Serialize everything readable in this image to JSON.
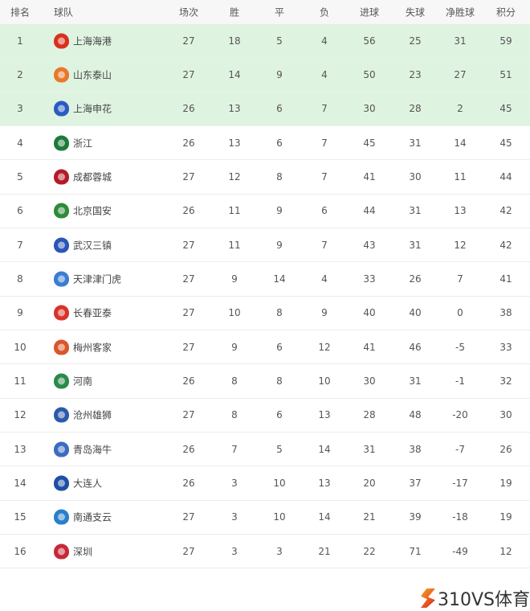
{
  "headers": {
    "rank": "排名",
    "team": "球队",
    "played": "场次",
    "won": "胜",
    "drawn": "平",
    "lost": "负",
    "gf": "进球",
    "ga": "失球",
    "gd": "净胜球",
    "pts": "积分"
  },
  "highlight_color": "#dff3e1",
  "rows": [
    {
      "rank": "1",
      "team": "上海海港",
      "played": "27",
      "won": "18",
      "drawn": "5",
      "lost": "4",
      "gf": "56",
      "ga": "25",
      "gd": "31",
      "pts": "59",
      "logo_color": "#d9301e"
    },
    {
      "rank": "2",
      "team": "山东泰山",
      "played": "27",
      "won": "14",
      "drawn": "9",
      "lost": "4",
      "gf": "50",
      "ga": "23",
      "gd": "27",
      "pts": "51",
      "logo_color": "#e8782a"
    },
    {
      "rank": "3",
      "team": "上海申花",
      "played": "26",
      "won": "13",
      "drawn": "6",
      "lost": "7",
      "gf": "30",
      "ga": "28",
      "gd": "2",
      "pts": "45",
      "logo_color": "#2a5cc0"
    },
    {
      "rank": "4",
      "team": "浙江",
      "played": "26",
      "won": "13",
      "drawn": "6",
      "lost": "7",
      "gf": "45",
      "ga": "31",
      "gd": "14",
      "pts": "45",
      "logo_color": "#1f7a3a"
    },
    {
      "rank": "5",
      "team": "成都蓉城",
      "played": "27",
      "won": "12",
      "drawn": "8",
      "lost": "7",
      "gf": "41",
      "ga": "30",
      "gd": "11",
      "pts": "44",
      "logo_color": "#b31b2a"
    },
    {
      "rank": "6",
      "team": "北京国安",
      "played": "26",
      "won": "11",
      "drawn": "9",
      "lost": "6",
      "gf": "44",
      "ga": "31",
      "gd": "13",
      "pts": "42",
      "logo_color": "#2e8b3a"
    },
    {
      "rank": "7",
      "team": "武汉三镇",
      "played": "27",
      "won": "11",
      "drawn": "9",
      "lost": "7",
      "gf": "43",
      "ga": "31",
      "gd": "12",
      "pts": "42",
      "logo_color": "#2b56b5"
    },
    {
      "rank": "8",
      "team": "天津津门虎",
      "played": "27",
      "won": "9",
      "drawn": "14",
      "lost": "4",
      "gf": "33",
      "ga": "26",
      "gd": "7",
      "pts": "41",
      "logo_color": "#3a7dd0"
    },
    {
      "rank": "9",
      "team": "长春亚泰",
      "played": "27",
      "won": "10",
      "drawn": "8",
      "lost": "9",
      "gf": "40",
      "ga": "40",
      "gd": "0",
      "pts": "38",
      "logo_color": "#d8342a"
    },
    {
      "rank": "10",
      "team": "梅州客家",
      "played": "27",
      "won": "9",
      "drawn": "6",
      "lost": "12",
      "gf": "41",
      "ga": "46",
      "gd": "-5",
      "pts": "33",
      "logo_color": "#d8562a"
    },
    {
      "rank": "11",
      "team": "河南",
      "played": "26",
      "won": "8",
      "drawn": "8",
      "lost": "10",
      "gf": "30",
      "ga": "31",
      "gd": "-1",
      "pts": "32",
      "logo_color": "#2a8a4a"
    },
    {
      "rank": "12",
      "team": "沧州雄狮",
      "played": "27",
      "won": "8",
      "drawn": "6",
      "lost": "13",
      "gf": "28",
      "ga": "48",
      "gd": "-20",
      "pts": "30",
      "logo_color": "#2c5aa8"
    },
    {
      "rank": "13",
      "team": "青岛海牛",
      "played": "26",
      "won": "7",
      "drawn": "5",
      "lost": "14",
      "gf": "31",
      "ga": "38",
      "gd": "-7",
      "pts": "26",
      "logo_color": "#3b6cc0"
    },
    {
      "rank": "14",
      "team": "大连人",
      "played": "26",
      "won": "3",
      "drawn": "10",
      "lost": "13",
      "gf": "20",
      "ga": "37",
      "gd": "-17",
      "pts": "19",
      "logo_color": "#1d4fa5"
    },
    {
      "rank": "15",
      "team": "南通支云",
      "played": "27",
      "won": "3",
      "drawn": "10",
      "lost": "14",
      "gf": "21",
      "ga": "39",
      "gd": "-18",
      "pts": "19",
      "logo_color": "#2a7fc9"
    },
    {
      "rank": "16",
      "team": "深圳",
      "played": "27",
      "won": "3",
      "drawn": "3",
      "lost": "21",
      "gf": "22",
      "ga": "71",
      "gd": "-49",
      "pts": "12",
      "logo_color": "#c8283a"
    }
  ],
  "brand": {
    "text": "310VS体育"
  }
}
